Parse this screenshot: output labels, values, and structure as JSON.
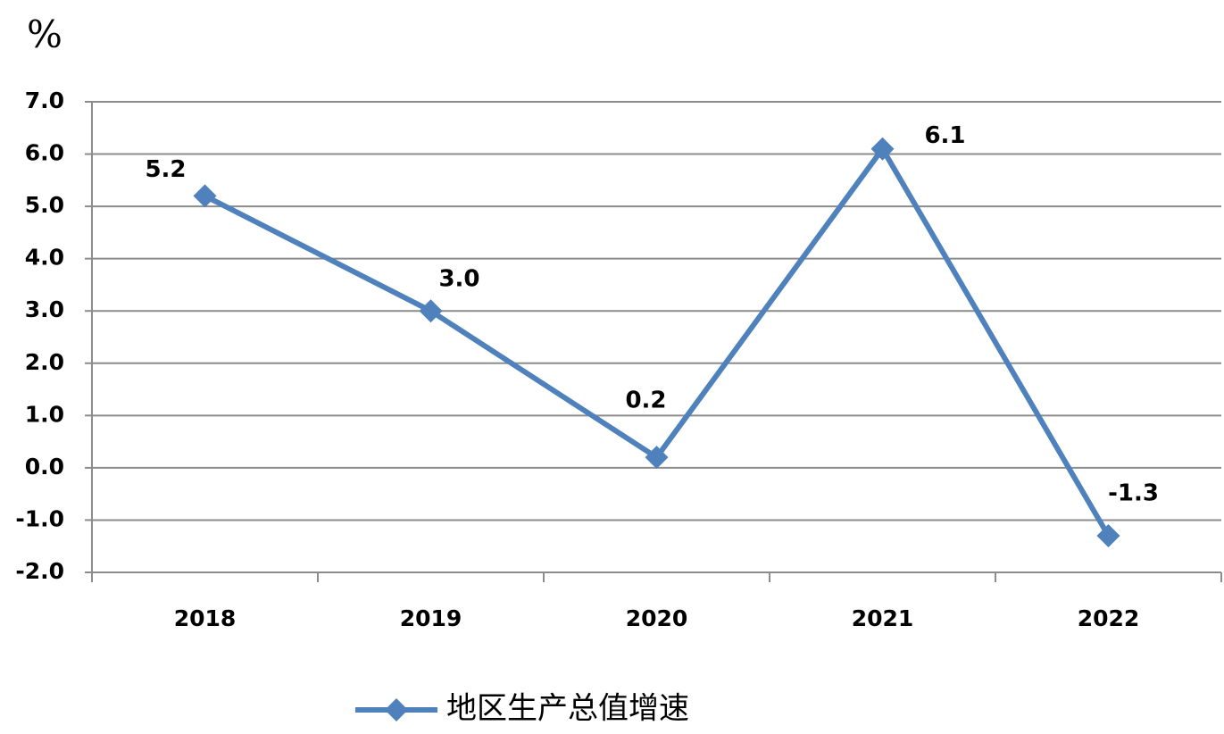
{
  "chart_data": {
    "type": "line",
    "y_label": "%",
    "categories": [
      "2018",
      "2019",
      "2020",
      "2021",
      "2022"
    ],
    "series": [
      {
        "name": "地区生产总值增速",
        "color": "#4f81bd",
        "values": [
          5.2,
          3.0,
          0.2,
          6.1,
          -1.3
        ],
        "value_labels": [
          "5.2",
          "3.0",
          "0.2",
          "6.1",
          "-1.3"
        ]
      }
    ],
    "ylim": [
      -2,
      7
    ],
    "yticks": [
      {
        "value": -2,
        "label": "-2.0"
      },
      {
        "value": -1,
        "label": "-1.0"
      },
      {
        "value": 0,
        "label": "0.0"
      },
      {
        "value": 1,
        "label": "1.0"
      },
      {
        "value": 2,
        "label": "2.0"
      },
      {
        "value": 3,
        "label": "3.0"
      },
      {
        "value": 4,
        "label": "4.0"
      },
      {
        "value": 5,
        "label": "5.0"
      },
      {
        "value": 6,
        "label": "6.0"
      },
      {
        "value": 7,
        "label": "7.0"
      }
    ],
    "grid": true,
    "legend": "bottom"
  }
}
